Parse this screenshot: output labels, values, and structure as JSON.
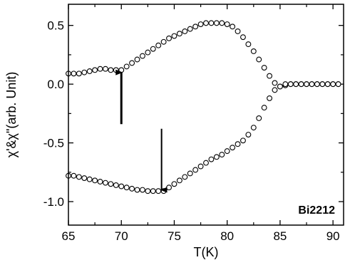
{
  "chart_data": {
    "type": "scatter",
    "xlabel": "T(K)",
    "ylabel": "χ'&χ\"(arb. Unit)",
    "xlim": [
      65,
      91
    ],
    "ylim": [
      -1.2,
      0.68
    ],
    "x_ticks": [
      65,
      70,
      75,
      80,
      85,
      90
    ],
    "x_tick_labels": [
      "65",
      "70",
      "75",
      "80",
      "85",
      "90"
    ],
    "y_ticks": [
      -1.0,
      -0.5,
      0.0,
      0.5
    ],
    "y_tick_labels": [
      "-1.0",
      "-0.5",
      "0.0",
      "0.5"
    ],
    "grid": false,
    "legend": "none",
    "marker": "open-circle",
    "marker_color": "#000000",
    "annotation": "Bi2212",
    "series": [
      {
        "x": [
          65.0,
          65.5,
          66.0,
          66.5,
          67.0,
          67.5,
          68.0,
          68.5,
          69.0,
          69.5,
          70.0,
          70.5,
          71.0,
          71.5,
          72.0,
          72.5,
          73.0,
          73.5,
          74.0,
          74.5,
          75.0,
          75.5,
          76.0,
          76.5,
          77.0,
          77.5,
          78.0,
          78.5,
          79.0,
          79.5,
          80.0,
          80.5,
          81.0,
          81.5,
          82.0,
          82.5,
          83.0,
          83.5,
          84.0,
          84.5,
          85.0,
          85.5,
          86.0,
          86.5,
          87.0,
          87.5,
          88.0,
          88.5,
          89.0,
          89.5,
          90.0,
          90.5
        ],
        "y": [
          0.09,
          0.09,
          0.09,
          0.1,
          0.11,
          0.12,
          0.13,
          0.13,
          0.12,
          0.12,
          0.12,
          0.15,
          0.18,
          0.21,
          0.24,
          0.27,
          0.3,
          0.33,
          0.36,
          0.39,
          0.41,
          0.43,
          0.45,
          0.47,
          0.49,
          0.51,
          0.52,
          0.52,
          0.52,
          0.52,
          0.51,
          0.49,
          0.45,
          0.4,
          0.34,
          0.28,
          0.21,
          0.14,
          0.07,
          0.01,
          -0.02,
          -0.01,
          0.0,
          0.0,
          0.0,
          0.0,
          0.0,
          0.0,
          0.0,
          0.0,
          0.0,
          0.0
        ]
      },
      {
        "x": [
          65.0,
          65.5,
          66.0,
          66.5,
          67.0,
          67.5,
          68.0,
          68.5,
          69.0,
          69.5,
          70.0,
          70.5,
          71.0,
          71.5,
          72.0,
          72.5,
          73.0,
          73.5,
          74.0,
          74.5,
          75.0,
          75.5,
          76.0,
          76.5,
          77.0,
          77.5,
          78.0,
          78.5,
          79.0,
          79.5,
          80.0,
          80.5,
          81.0,
          81.5,
          82.0,
          82.5,
          83.0,
          83.5,
          84.0,
          84.5,
          85.0,
          85.5,
          86.0,
          86.5,
          87.0,
          87.5,
          88.0,
          88.5,
          89.0,
          89.5,
          90.0,
          90.5
        ],
        "y": [
          -0.78,
          -0.78,
          -0.79,
          -0.8,
          -0.81,
          -0.82,
          -0.83,
          -0.84,
          -0.85,
          -0.86,
          -0.87,
          -0.88,
          -0.89,
          -0.9,
          -0.9,
          -0.91,
          -0.91,
          -0.91,
          -0.91,
          -0.88,
          -0.85,
          -0.82,
          -0.79,
          -0.76,
          -0.73,
          -0.7,
          -0.67,
          -0.64,
          -0.62,
          -0.6,
          -0.57,
          -0.54,
          -0.51,
          -0.48,
          -0.43,
          -0.37,
          -0.29,
          -0.2,
          -0.12,
          -0.05,
          -0.02,
          0.0,
          0.0,
          0.0,
          0.0,
          0.0,
          0.0,
          0.0,
          0.0,
          0.0,
          0.0,
          0.0
        ]
      }
    ],
    "arrows": [
      {
        "x": 70.0,
        "y_start": -0.34,
        "y_end": 0.1,
        "direction": "up"
      },
      {
        "x": 73.8,
        "y_start": -0.38,
        "y_end": -0.9,
        "direction": "down"
      }
    ]
  }
}
